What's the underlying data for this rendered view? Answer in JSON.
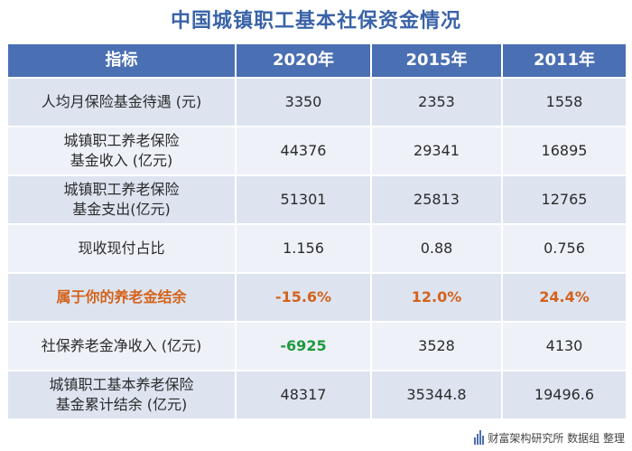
{
  "title": "中国城镇职工基本社保资金情况",
  "table": {
    "headers": [
      "指标",
      "2020年",
      "2015年",
      "2011年"
    ],
    "rows": [
      {
        "label": [
          "人均月保险基金待遇 (元)"
        ],
        "values": [
          "3350",
          "2353",
          "1558"
        ]
      },
      {
        "label": [
          "城镇职工养老保险",
          "基金收入 (亿元)"
        ],
        "values": [
          "44376",
          "29341",
          "16895"
        ]
      },
      {
        "label": [
          "城镇职工养老保险",
          "基金支出(亿元)"
        ],
        "values": [
          "51301",
          "25813",
          "12765"
        ]
      },
      {
        "label": [
          "现收现付占比"
        ],
        "values": [
          "1.156",
          "0.88",
          "0.756"
        ]
      },
      {
        "label": [
          "属于你的养老金结余"
        ],
        "values": [
          "-15.6%",
          "12.0%",
          "24.4%"
        ]
      },
      {
        "label": [
          "社保养老金净收入 (亿元)"
        ],
        "values": [
          "-6925",
          "3528",
          "4130"
        ]
      },
      {
        "label": [
          "城镇职工基本养老保险",
          "基金累计结余 (亿元)"
        ],
        "values": [
          "48317",
          "35344.8",
          "19496.6"
        ]
      }
    ]
  },
  "footer": {
    "text": "财富架构研究所 数据组 整理"
  },
  "colors": {
    "header_bg": "#4b6fb3",
    "highlight": "#d4621b",
    "positive": "#1d9a3c",
    "title": "#3a63a8"
  }
}
